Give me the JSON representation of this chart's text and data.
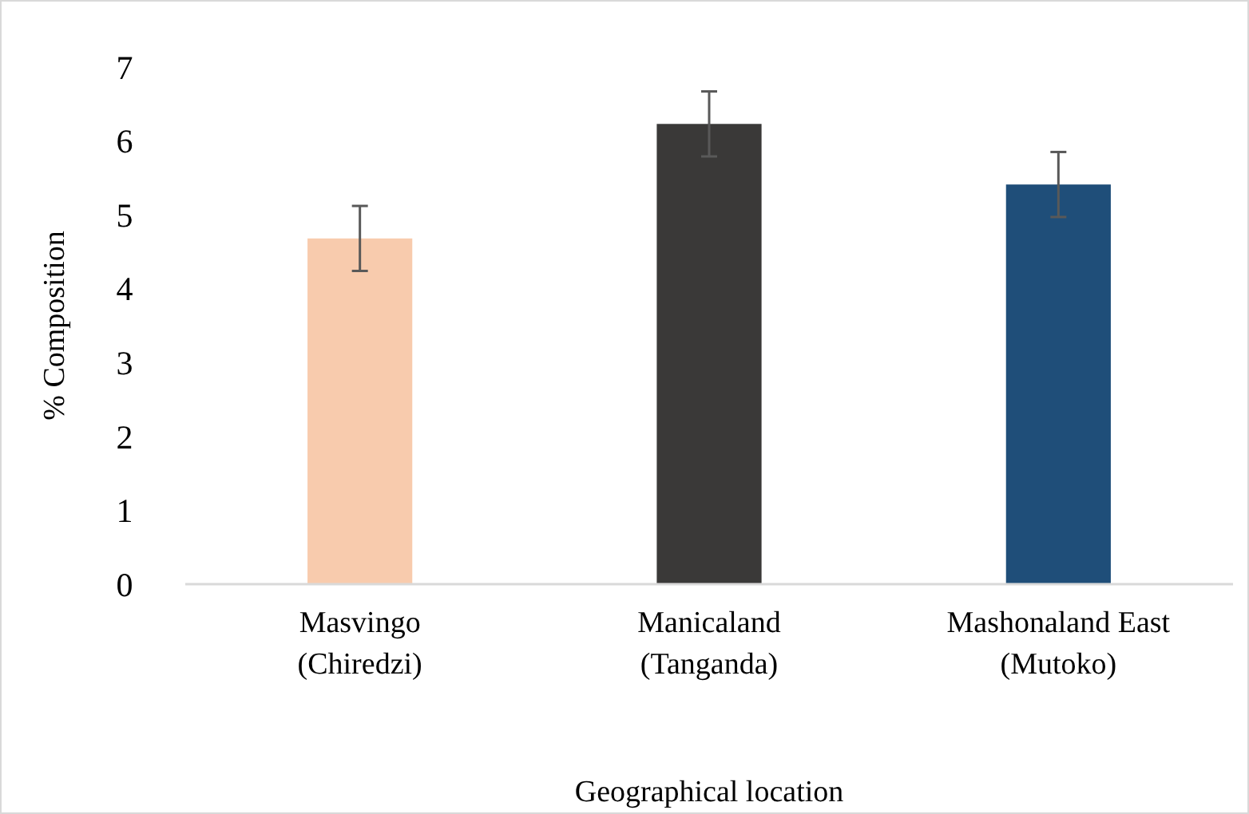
{
  "chart_data": {
    "type": "bar",
    "xlabel": "Geographical location",
    "ylabel": "% Composition",
    "categories": [
      "Masvingo\n(Chiredzi)",
      "Manicaland\n(Tanganda)",
      "Mashonaland East\n(Mutoko)"
    ],
    "values": [
      4.68,
      6.23,
      5.41
    ],
    "colors": [
      "#f8cbad",
      "#3a3938",
      "#1f4e79"
    ],
    "errors": [
      0.44,
      0.44,
      0.44
    ],
    "ylim": [
      0,
      7
    ],
    "yticks": [
      0,
      1,
      2,
      3,
      4,
      5,
      6,
      7
    ],
    "grid": false
  }
}
